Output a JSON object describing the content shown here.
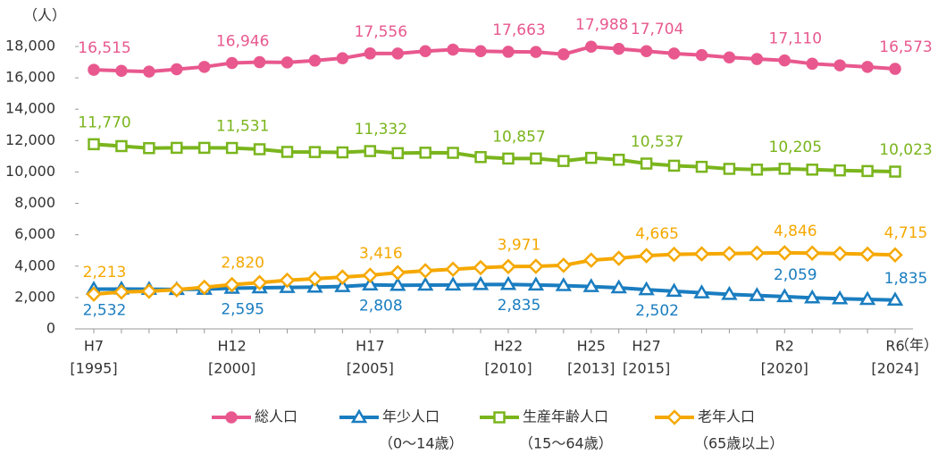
{
  "chart_data": {
    "type": "line",
    "y_unit": "（人）",
    "x_unit": "（年）",
    "categories": [
      "H7",
      null,
      null,
      null,
      null,
      "H12",
      null,
      null,
      null,
      null,
      "H17",
      null,
      null,
      null,
      null,
      "H22",
      null,
      null,
      "H25",
      null,
      "H27",
      null,
      null,
      null,
      null,
      "R2",
      null,
      null,
      null,
      "R6"
    ],
    "category_years": [
      "[1995]",
      null,
      null,
      null,
      null,
      "[2000]",
      null,
      null,
      null,
      null,
      "[2005]",
      null,
      null,
      null,
      null,
      "[2010]",
      null,
      null,
      "[2013]",
      null,
      "[2015]",
      null,
      null,
      null,
      null,
      "[2020]",
      null,
      null,
      null,
      "[2024]"
    ],
    "ylim": [
      0,
      18000
    ],
    "yticks": [
      0,
      {
        "value": 2000,
        "label": "2,000"
      },
      {
        "value": 4000,
        "label": "4,000"
      },
      {
        "value": 6000,
        "label": "6,000"
      },
      {
        "value": 8000,
        "label": "8,000"
      },
      {
        "value": 10000,
        "label": "10,000"
      },
      {
        "value": 12000,
        "label": "12,000"
      },
      {
        "value": 14000,
        "label": "14,000"
      },
      {
        "value": 16000,
        "label": "16,000"
      },
      {
        "value": 18000,
        "label": "18,000"
      }
    ],
    "grid": false,
    "series": [
      {
        "name": "総人口",
        "marker": "circle",
        "color": "#e8588e",
        "values": [
          16515,
          16450,
          16400,
          16550,
          16700,
          16946,
          17000,
          16980,
          17100,
          17250,
          17556,
          17550,
          17700,
          17800,
          17700,
          17663,
          17650,
          17500,
          17988,
          17850,
          17704,
          17550,
          17450,
          17300,
          17200,
          17110,
          16900,
          16800,
          16700,
          16573
        ],
        "value_labels": [
          "16,515",
          null,
          null,
          null,
          null,
          "16,946",
          null,
          null,
          null,
          null,
          "17,556",
          null,
          null,
          null,
          null,
          "17,663",
          null,
          null,
          "17,988",
          null,
          "17,704",
          null,
          null,
          null,
          null,
          "17,110",
          null,
          null,
          null,
          "16,573"
        ]
      },
      {
        "name": "年少人口",
        "note": "（0～14歳）",
        "marker": "triangle",
        "color": "#1a7dc0",
        "values": [
          2532,
          2540,
          2530,
          2510,
          2530,
          2595,
          2620,
          2640,
          2660,
          2700,
          2808,
          2780,
          2790,
          2800,
          2830,
          2835,
          2800,
          2760,
          2700,
          2620,
          2502,
          2400,
          2300,
          2200,
          2130,
          2059,
          1980,
          1920,
          1880,
          1835
        ],
        "value_labels": [
          "2,532",
          null,
          null,
          null,
          null,
          "2,595",
          null,
          null,
          null,
          null,
          "2,808",
          null,
          null,
          null,
          null,
          "2,835",
          null,
          null,
          null,
          null,
          "2,502",
          null,
          null,
          null,
          null,
          "2,059",
          null,
          null,
          null,
          "1,835"
        ]
      },
      {
        "name": "生産年齢人口",
        "note": "（15～64歳）",
        "marker": "square",
        "color": "#7ab51d",
        "values": [
          11770,
          11650,
          11520,
          11540,
          11540,
          11531,
          11450,
          11280,
          11270,
          11250,
          11332,
          11200,
          11230,
          11220,
          10950,
          10857,
          10860,
          10700,
          10900,
          10780,
          10537,
          10400,
          10330,
          10200,
          10150,
          10205,
          10150,
          10100,
          10060,
          10023
        ],
        "value_labels": [
          "11,770",
          null,
          null,
          null,
          null,
          "11,531",
          null,
          null,
          null,
          null,
          "11,332",
          null,
          null,
          null,
          null,
          "10,857",
          null,
          null,
          null,
          null,
          "10,537",
          null,
          null,
          null,
          null,
          "10,205",
          null,
          null,
          null,
          "10,023"
        ]
      },
      {
        "name": "老年人口",
        "note": "（65歳以上）",
        "marker": "diamond",
        "color": "#f5a800",
        "values": [
          2213,
          2350,
          2400,
          2500,
          2650,
          2820,
          2950,
          3100,
          3200,
          3300,
          3416,
          3580,
          3700,
          3800,
          3900,
          3971,
          3990,
          4050,
          4380,
          4500,
          4665,
          4750,
          4780,
          4800,
          4830,
          4846,
          4830,
          4800,
          4760,
          4715
        ],
        "value_labels": [
          "2,213",
          null,
          null,
          null,
          null,
          "2,820",
          null,
          null,
          null,
          null,
          "3,416",
          null,
          null,
          null,
          null,
          "3,971",
          null,
          null,
          null,
          null,
          "4,665",
          null,
          null,
          null,
          null,
          "4,846",
          null,
          null,
          null,
          "4,715"
        ]
      }
    ]
  }
}
